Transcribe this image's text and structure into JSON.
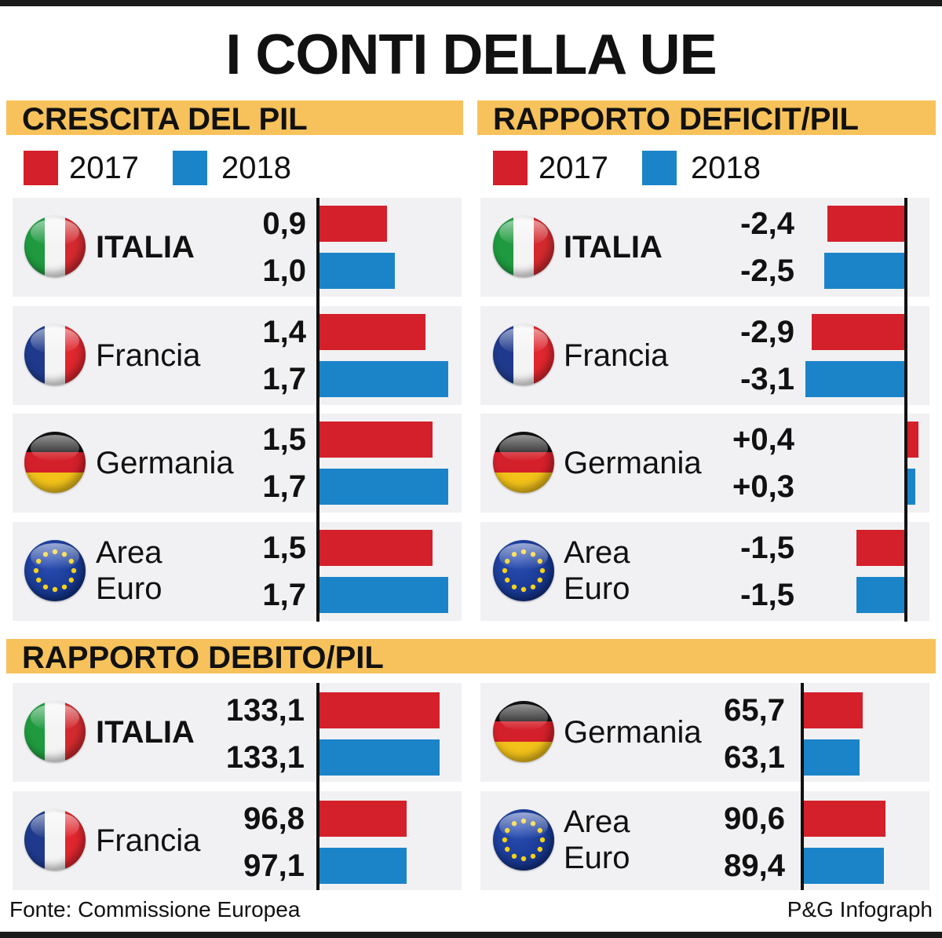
{
  "title": "I CONTI DELLA UE",
  "colors": {
    "y2017": "#d4202a",
    "y2018": "#1b84c9",
    "header": "#f7c25b"
  },
  "legend": {
    "y2017": "2017",
    "y2018": "2018"
  },
  "chart_data": [
    {
      "type": "bar",
      "title": "CRESCITA DEL PIL",
      "categories": [
        "ITALIA",
        "Francia",
        "Germania",
        "Area Euro"
      ],
      "flags": [
        "flag-italy-icon",
        "flag-france-icon",
        "flag-germany-icon",
        "flag-eu-icon"
      ],
      "series": [
        {
          "name": "2017",
          "values": [
            0.9,
            1.4,
            1.5,
            1.5
          ],
          "labels": [
            "0,9",
            "1,4",
            "1,5",
            "1,5"
          ]
        },
        {
          "name": "2018",
          "values": [
            1.0,
            1.7,
            1.7,
            1.7
          ],
          "labels": [
            "1,0",
            "1,7",
            "1,7",
            "1,7"
          ]
        }
      ]
    },
    {
      "type": "bar",
      "title": "RAPPORTO DEFICIT/PIL",
      "categories": [
        "ITALIA",
        "Francia",
        "Germania",
        "Area Euro"
      ],
      "flags": [
        "flag-italy-icon",
        "flag-france-icon",
        "flag-germany-icon",
        "flag-eu-icon"
      ],
      "series": [
        {
          "name": "2017",
          "values": [
            -2.4,
            -2.9,
            0.4,
            -1.5
          ],
          "labels": [
            "-2,4",
            "-2,9",
            "+0,4",
            "-1,5"
          ]
        },
        {
          "name": "2018",
          "values": [
            -2.5,
            -3.1,
            0.3,
            -1.5
          ],
          "labels": [
            "-2,5",
            "-3,1",
            "+0,3",
            "-1,5"
          ]
        }
      ]
    },
    {
      "type": "bar",
      "title": "RAPPORTO DEBITO/PIL",
      "categories": [
        "ITALIA",
        "Francia",
        "Germania",
        "Area Euro"
      ],
      "flags": [
        "flag-italy-icon",
        "flag-france-icon",
        "flag-germany-icon",
        "flag-eu-icon"
      ],
      "series": [
        {
          "name": "2017",
          "values": [
            133.1,
            96.8,
            65.7,
            90.6
          ],
          "labels": [
            "133,1",
            "96,8",
            "65,7",
            "90,6"
          ]
        },
        {
          "name": "2018",
          "values": [
            133.1,
            97.1,
            63.1,
            89.4
          ],
          "labels": [
            "133,1",
            "97,1",
            "63,1",
            "89,4"
          ]
        }
      ]
    }
  ],
  "footer": {
    "source": "Fonte: Commissione Europea",
    "credit": "P&G Infograph"
  }
}
